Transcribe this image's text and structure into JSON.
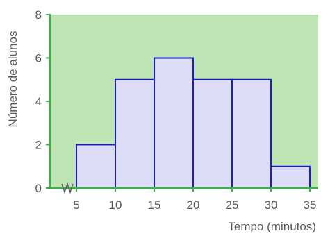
{
  "chart_data": {
    "type": "bar",
    "xlabel": "Tempo (minutos)",
    "ylabel": "Número de alunos",
    "bins": [
      {
        "x_start": 5,
        "x_end": 10,
        "value": 2
      },
      {
        "x_start": 10,
        "x_end": 15,
        "value": 5
      },
      {
        "x_start": 15,
        "x_end": 20,
        "value": 6
      },
      {
        "x_start": 20,
        "x_end": 25,
        "value": 5
      },
      {
        "x_start": 25,
        "x_end": 30,
        "value": 5
      },
      {
        "x_start": 30,
        "x_end": 35,
        "value": 1
      }
    ],
    "x_ticks": [
      "5",
      "10",
      "15",
      "20",
      "25",
      "30",
      "35"
    ],
    "y_ticks": [
      "0",
      "2",
      "4",
      "6",
      "8"
    ],
    "xlim": [
      0,
      35
    ],
    "ylim": [
      0,
      8
    ],
    "grid": false,
    "axis_break": "x",
    "colors": {
      "plot_background": "#bfe5b4",
      "bar_fill": "#dcdcf6",
      "bar_stroke": "#1c1cc8",
      "axis": "#40ad4a",
      "text": "#58595b"
    }
  }
}
